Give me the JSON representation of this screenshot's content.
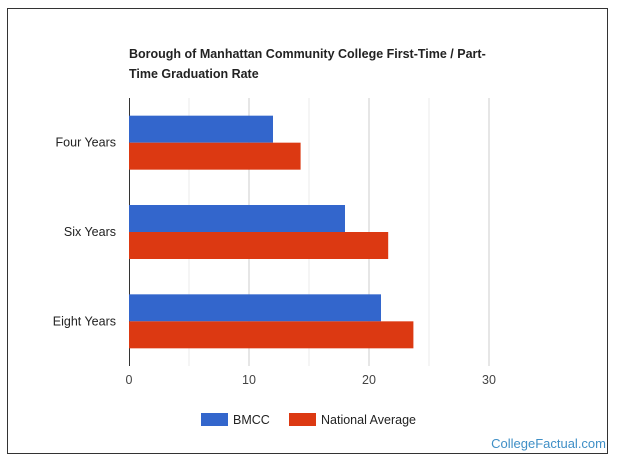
{
  "chart_data": {
    "type": "bar",
    "orientation": "horizontal",
    "title": "Borough of Manhattan Community College First-Time / Part-Time Graduation Rate",
    "categories": [
      "Four Years",
      "Six Years",
      "Eight Years"
    ],
    "series": [
      {
        "name": "BMCC",
        "color": "#3366cc",
        "values": [
          12,
          18,
          21
        ]
      },
      {
        "name": "National Average",
        "color": "#dc3912",
        "values": [
          14.3,
          21.6,
          23.7
        ]
      }
    ],
    "xlim": [
      0,
      30
    ],
    "xticks": [
      0,
      10,
      20,
      30
    ],
    "xlabel": "",
    "ylabel": "",
    "grid": true,
    "legend": "bottom"
  },
  "watermark": "CollegeFactual.com"
}
